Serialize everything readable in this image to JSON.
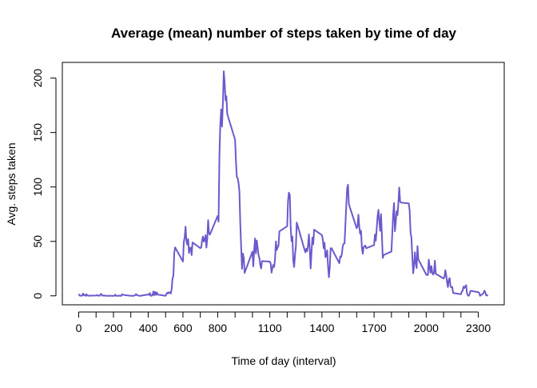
{
  "chart_data": {
    "type": "line",
    "title": "Average (mean) number of steps taken by time of day",
    "x_label": "Time of day (interval)",
    "y_label": "Avg. steps taken",
    "x": [
      0,
      5,
      10,
      15,
      20,
      25,
      30,
      35,
      40,
      45,
      50,
      55,
      100,
      105,
      110,
      115,
      120,
      125,
      130,
      135,
      140,
      145,
      150,
      155,
      200,
      205,
      210,
      215,
      220,
      225,
      230,
      235,
      240,
      245,
      250,
      255,
      300,
      305,
      310,
      315,
      320,
      325,
      330,
      335,
      340,
      345,
      350,
      355,
      400,
      405,
      410,
      415,
      420,
      425,
      430,
      435,
      440,
      445,
      450,
      455,
      500,
      505,
      510,
      515,
      520,
      525,
      530,
      535,
      540,
      545,
      550,
      555,
      600,
      605,
      610,
      615,
      620,
      625,
      630,
      635,
      640,
      645,
      650,
      655,
      700,
      705,
      710,
      715,
      720,
      725,
      730,
      735,
      740,
      745,
      750,
      755,
      800,
      805,
      810,
      815,
      820,
      825,
      830,
      835,
      840,
      845,
      850,
      855,
      900,
      905,
      910,
      915,
      920,
      925,
      930,
      935,
      940,
      945,
      950,
      955,
      1000,
      1005,
      1010,
      1015,
      1020,
      1025,
      1030,
      1035,
      1040,
      1045,
      1050,
      1055,
      1100,
      1105,
      1110,
      1115,
      1120,
      1125,
      1130,
      1135,
      1140,
      1145,
      1150,
      1155,
      1200,
      1205,
      1210,
      1215,
      1220,
      1225,
      1230,
      1235,
      1240,
      1245,
      1250,
      1255,
      1300,
      1305,
      1310,
      1315,
      1320,
      1325,
      1330,
      1335,
      1340,
      1345,
      1350,
      1355,
      1400,
      1405,
      1410,
      1415,
      1420,
      1425,
      1430,
      1435,
      1440,
      1445,
      1450,
      1455,
      1500,
      1505,
      1510,
      1515,
      1520,
      1525,
      1530,
      1535,
      1540,
      1545,
      1550,
      1555,
      1600,
      1605,
      1610,
      1615,
      1620,
      1625,
      1630,
      1635,
      1640,
      1645,
      1650,
      1655,
      1700,
      1705,
      1710,
      1715,
      1720,
      1725,
      1730,
      1735,
      1740,
      1745,
      1750,
      1755,
      1800,
      1805,
      1810,
      1815,
      1820,
      1825,
      1830,
      1835,
      1840,
      1845,
      1850,
      1855,
      1900,
      1905,
      1910,
      1915,
      1920,
      1925,
      1930,
      1935,
      1940,
      1945,
      1950,
      1955,
      2000,
      2005,
      2010,
      2015,
      2020,
      2025,
      2030,
      2035,
      2040,
      2045,
      2050,
      2055,
      2100,
      2105,
      2110,
      2115,
      2120,
      2125,
      2130,
      2135,
      2140,
      2145,
      2150,
      2155,
      2200,
      2205,
      2210,
      2215,
      2220,
      2225,
      2230,
      2235,
      2240,
      2245,
      2250,
      2255,
      2300,
      2305,
      2310,
      2315,
      2320,
      2325,
      2330,
      2335,
      2340,
      2345,
      2350,
      2355
    ],
    "series": [
      {
        "name": "Avg. steps taken",
        "color": "#6a5acd",
        "values": [
          1.7,
          0.3,
          0.1,
          0.2,
          0.1,
          2.1,
          0.5,
          0.9,
          0,
          1.5,
          0.3,
          0.1,
          0.3,
          0.7,
          0.2,
          0.3,
          0,
          1.1,
          1.8,
          0.2,
          0.2,
          0.4,
          0.3,
          0,
          0,
          0,
          1.1,
          0,
          0,
          0.1,
          0,
          0.2,
          0,
          0,
          1.5,
          0.9,
          0,
          0,
          0,
          0,
          0.2,
          0.6,
          1.6,
          0.6,
          0.5,
          0.1,
          0,
          0,
          1.2,
          0.9,
          2.6,
          0,
          0.3,
          0.4,
          4.1,
          0.7,
          3.5,
          0.8,
          3.1,
          1.1,
          0,
          1.6,
          3,
          2.2,
          3.3,
          3,
          2.1,
          6.1,
          16,
          18.3,
          39.5,
          44.5,
          31.5,
          49.3,
          53.8,
          63.5,
          50,
          47.1,
          52.2,
          39.3,
          44,
          44.2,
          37.4,
          49,
          43.8,
          44.4,
          50.5,
          54.5,
          49.9,
          51,
          55.7,
          44.3,
          52.3,
          69.5,
          57.8,
          56.2,
          73.4,
          68.2,
          129.4,
          157.5,
          171.2,
          155.4,
          177.3,
          206.2,
          195.9,
          179.6,
          183.4,
          167,
          143.5,
          124,
          109.1,
          108.1,
          103.7,
          96,
          66.2,
          45.2,
          24.8,
          38.8,
          35,
          21.1,
          40.6,
          27,
          42.4,
          52.7,
          38.9,
          50.8,
          44.3,
          37.4,
          34.7,
          28.3,
          25.1,
          31.9,
          31.4,
          29.7,
          21.3,
          25.5,
          28.4,
          26.5,
          33.4,
          50,
          42,
          44.6,
          46,
          59.2,
          63.9,
          87.7,
          94.8,
          92.8,
          63.4,
          50.2,
          54.5,
          32.4,
          26.5,
          37.7,
          45.1,
          67.3,
          42.3,
          39.9,
          43.3,
          41,
          46.2,
          56.4,
          42.8,
          25.1,
          40,
          53.5,
          47.3,
          60.8,
          55.7,
          52,
          43.6,
          48.7,
          35.5,
          37.5,
          41.8,
          27.5,
          17.1,
          26.1,
          43.6,
          43.8,
          30,
          36.1,
          35.5,
          38.8,
          46,
          47.8,
          48.1,
          65.3,
          82.9,
          98.7,
          102.1,
          84,
          62.1,
          64.1,
          74.5,
          63.2,
          56.9,
          59.8,
          43.9,
          38.6,
          44.7,
          45.5,
          46.2,
          43.7,
          46.6,
          56.3,
          50.7,
          61.2,
          72.7,
          78.9,
          68.9,
          59.7,
          75.1,
          56.5,
          34.8,
          37.5,
          40.7,
          58,
          74.7,
          85.3,
          59.3,
          67.8,
          77.7,
          74.2,
          85.3,
          99.5,
          86.6,
          85.6,
          84.9,
          77.8,
          58,
          53.4,
          36.3,
          20.7,
          27.4,
          40,
          30.2,
          25.5,
          45.7,
          33.5,
          19.6,
          19,
          19.3,
          33.3,
          26.8,
          21.2,
          27.3,
          21.3,
          19.5,
          21.3,
          32.3,
          20.2,
          15.9,
          17.2,
          23.5,
          19.2,
          12.5,
          8,
          14.7,
          16.3,
          8.7,
          7.8,
          8.1,
          2.6,
          1.5,
          3.7,
          4.8,
          8.5,
          7.1,
          8.7,
          9.8,
          2.2,
          0.3,
          0.1,
          1.6,
          4.6,
          3.3,
          2.8,
          0,
          0.8,
          1,
          1.6,
          2.6,
          4.7,
          3.3,
          0.6,
          0.2,
          1.1
        ]
      }
    ],
    "xlim": [
      -94.2,
      2449.2
    ],
    "ylim": [
      -8.24,
      214.4
    ],
    "xticks": [
      0,
      200,
      400,
      600,
      800,
      1100,
      1400,
      1700,
      2000,
      2300
    ],
    "xticks_unlabeled": [
      100,
      300,
      500,
      700,
      900,
      1000,
      1200,
      1300,
      1500,
      1600,
      1800,
      1900,
      2100,
      2200
    ],
    "yticks": [
      0,
      50,
      100,
      150,
      200
    ]
  }
}
